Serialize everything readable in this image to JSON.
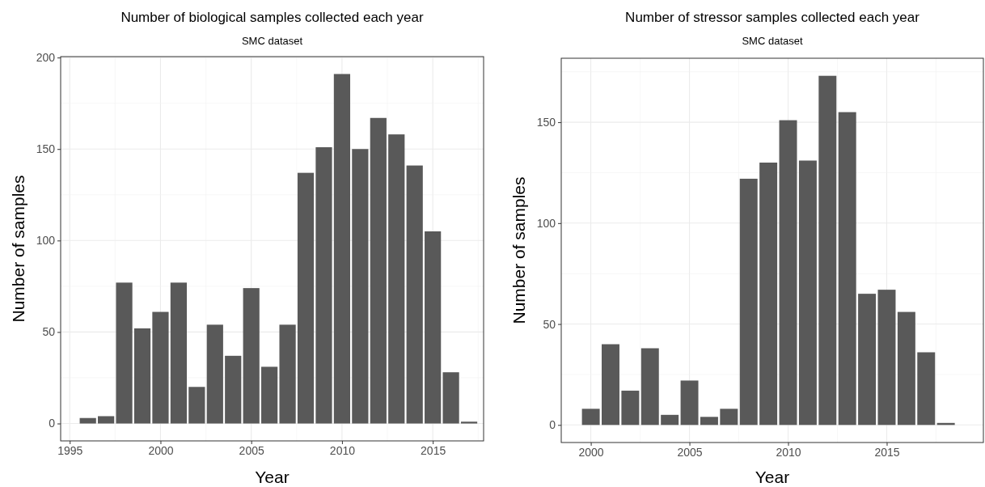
{
  "chart_data": [
    {
      "type": "bar",
      "title": "Number of biological samples collected each year",
      "subtitle": "SMC dataset",
      "xlabel": "Year",
      "ylabel": "Number of samples",
      "x": [
        1996,
        1997,
        1998,
        1999,
        2000,
        2001,
        2002,
        2003,
        2004,
        2005,
        2006,
        2007,
        2008,
        2009,
        2010,
        2011,
        2012,
        2013,
        2014,
        2015,
        2016,
        2017
      ],
      "values": [
        3,
        4,
        77,
        52,
        61,
        77,
        20,
        54,
        37,
        74,
        31,
        54,
        137,
        151,
        191,
        150,
        167,
        158,
        141,
        105,
        28,
        1
      ],
      "color": "#595959",
      "xlim": [
        1994.5,
        2017.8
      ],
      "xticks": [
        1995,
        2000,
        2005,
        2010,
        2015
      ],
      "ylim": [
        -9.5,
        200.5
      ],
      "yticks": [
        0,
        50,
        100,
        150,
        200
      ],
      "grid": true
    },
    {
      "type": "bar",
      "title": "Number of stressor samples collected each year",
      "subtitle": "SMC dataset",
      "xlabel": "Year",
      "ylabel": "Number of samples",
      "x": [
        2000,
        2001,
        2002,
        2003,
        2004,
        2005,
        2006,
        2007,
        2008,
        2009,
        2010,
        2011,
        2012,
        2013,
        2014,
        2015,
        2016,
        2017,
        2018
      ],
      "values": [
        8,
        40,
        17,
        38,
        5,
        22,
        4,
        8,
        122,
        130,
        151,
        131,
        173,
        155,
        65,
        67,
        56,
        36,
        1
      ],
      "color": "#595959",
      "xlim": [
        1998.5,
        2019.9
      ],
      "xticks": [
        2000,
        2005,
        2010,
        2015
      ],
      "ylim": [
        -8.7,
        181.7
      ],
      "yticks": [
        0,
        50,
        100,
        150
      ],
      "grid": true
    }
  ]
}
